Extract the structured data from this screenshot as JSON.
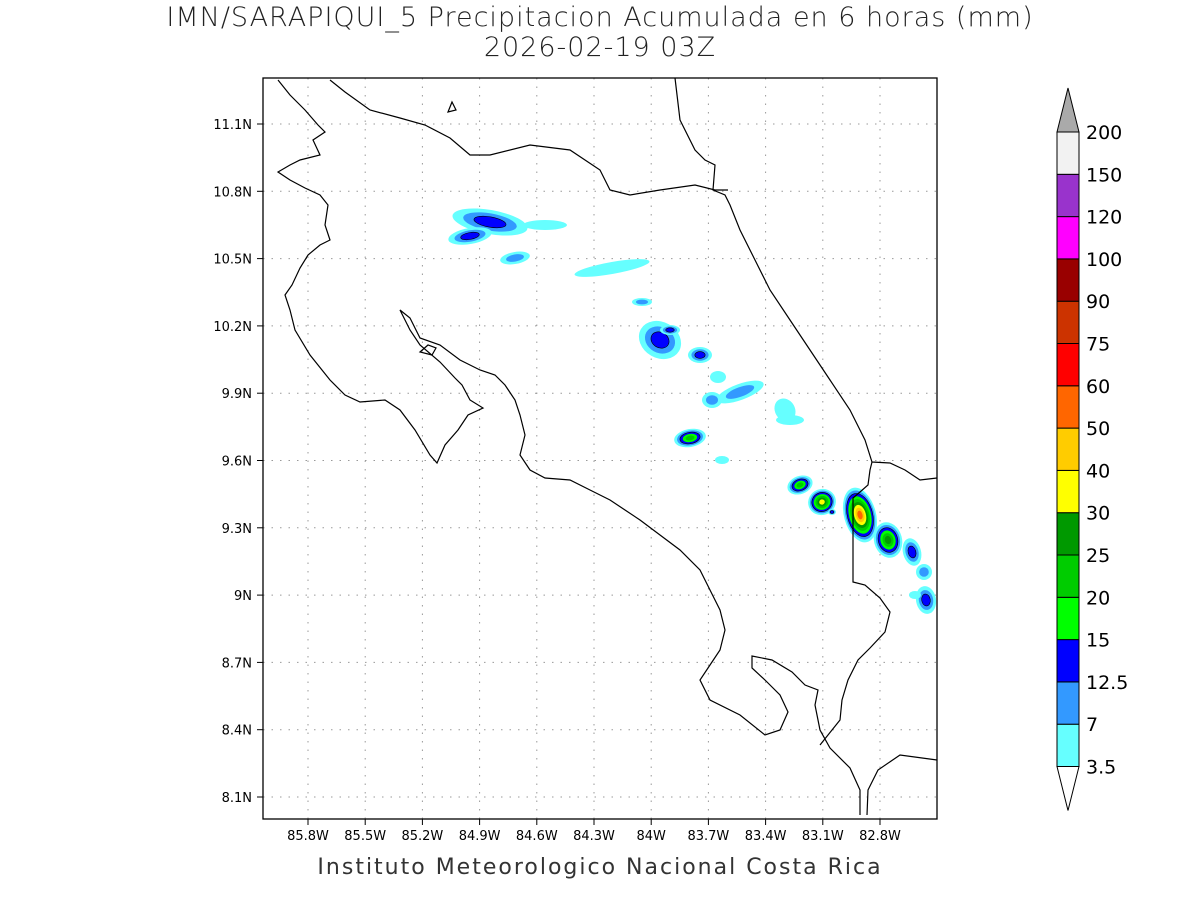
{
  "title_line1": "IMN/SARAPIQUI_5 Precipitacion Acumulada en 6 horas (mm)",
  "title_line2": "2026-02-19 03Z",
  "footer": "Instituto Meteorologico Nacional Costa Rica",
  "lon_ticks": [
    "85.8W",
    "85.5W",
    "85.2W",
    "84.9W",
    "84.6W",
    "84.3W",
    "84W",
    "83.7W",
    "83.4W",
    "83.1W",
    "82.8W"
  ],
  "lat_ticks": [
    "11.1N",
    "10.8N",
    "10.5N",
    "10.2N",
    "9.9N",
    "9.6N",
    "9.3N",
    "9N",
    "8.7N",
    "8.4N",
    "8.1N"
  ],
  "colorbar": {
    "labels": [
      "3.5",
      "7",
      "12.5",
      "15",
      "20",
      "25",
      "30",
      "40",
      "50",
      "60",
      "75",
      "90",
      "100",
      "120",
      "150",
      "200"
    ],
    "colors": [
      "#66ffff",
      "#3399ff",
      "#0000ff",
      "#00ff00",
      "#00cc00",
      "#009900",
      "#ffff00",
      "#ffcc00",
      "#ff6600",
      "#ff0000",
      "#cc3300",
      "#990000",
      "#ff00ff",
      "#9933cc",
      "#f2f2f2"
    ],
    "over_color": "#aaaaaa",
    "under_color": "#ffffff"
  }
}
